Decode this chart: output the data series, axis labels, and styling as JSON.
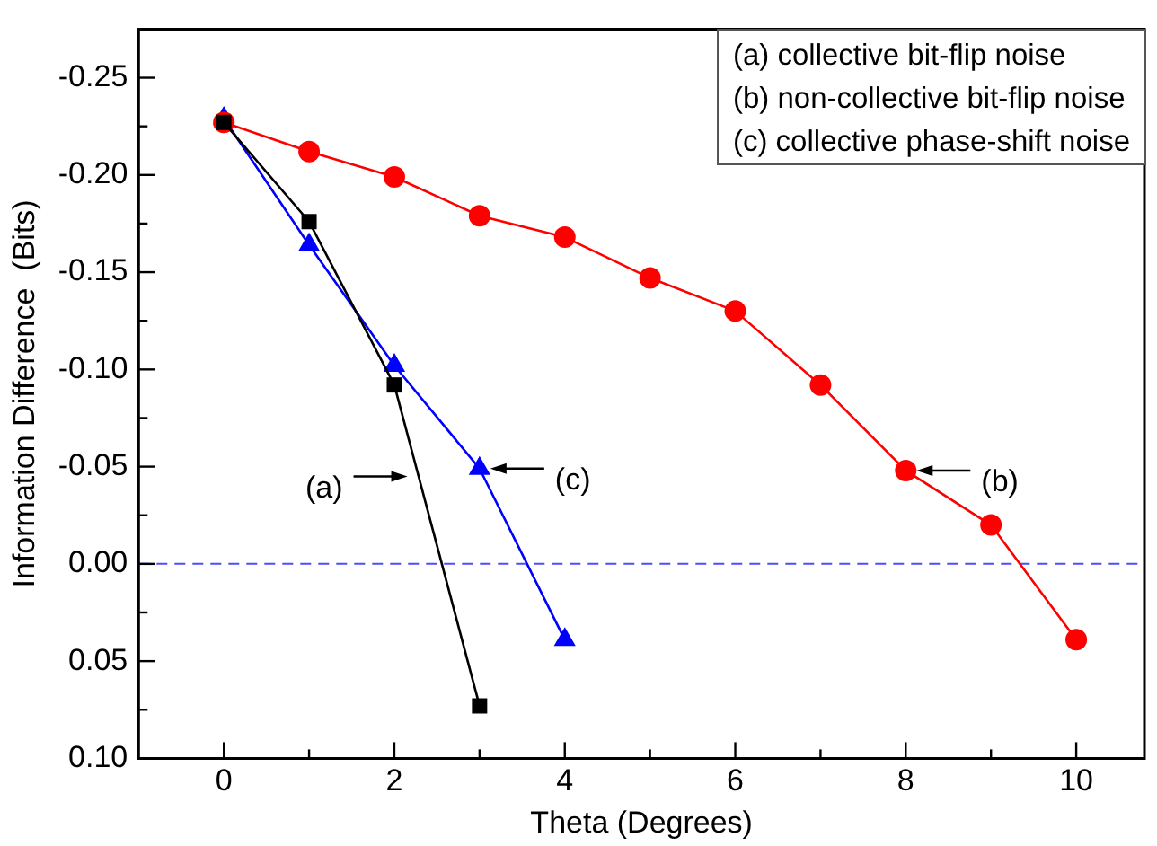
{
  "chart_data": {
    "type": "line",
    "xlabel": "Theta (Degrees)",
    "ylabel": "Information Difference  (Bits)",
    "xlim": [
      -1,
      10.8
    ],
    "xticks": [
      0,
      {
        "value": 1,
        "label": null
      },
      2,
      {
        "value": 3,
        "label": null
      },
      4,
      {
        "value": 5,
        "label": null
      },
      6,
      {
        "value": 7,
        "label": null
      },
      8,
      {
        "value": 9,
        "label": null
      },
      10
    ],
    "ylim": [
      0.1,
      -0.275
    ],
    "yticks": [
      {
        "value": -0.25,
        "label": "-0.25"
      },
      {
        "value": -0.225,
        "label": null
      },
      {
        "value": -0.2,
        "label": "-0.20"
      },
      {
        "value": -0.175,
        "label": null
      },
      {
        "value": -0.15,
        "label": "-0.15"
      },
      {
        "value": -0.125,
        "label": null
      },
      {
        "value": -0.1,
        "label": "-0.10"
      },
      {
        "value": -0.075,
        "label": null
      },
      {
        "value": -0.05,
        "label": "-0.05"
      },
      {
        "value": -0.025,
        "label": null
      },
      {
        "value": 0,
        "label": "0.00"
      },
      {
        "value": 0.025,
        "label": null
      },
      {
        "value": 0.05,
        "label": "0.05"
      },
      {
        "value": 0.075,
        "label": null
      },
      {
        "value": 0.1,
        "label": "0.10"
      }
    ],
    "x": [
      0,
      1,
      2,
      3,
      4,
      5,
      6,
      7,
      8,
      9,
      10
    ],
    "series": [
      {
        "color": "#000000",
        "marker": "square",
        "x": [
          0,
          1,
          2,
          3
        ],
        "values": [
          -0.227,
          -0.176,
          -0.092,
          0.073
        ]
      },
      {
        "color": "#ff0000",
        "marker": "circle",
        "values": [
          -0.227,
          -0.212,
          -0.199,
          -0.179,
          -0.168,
          -0.147,
          -0.13,
          -0.092,
          -0.048,
          -0.02,
          0.039
        ]
      },
      {
        "color": "#0000ff",
        "marker": "triangle",
        "x": [
          0,
          1,
          2,
          3,
          4
        ],
        "values": [
          -0.229,
          -0.164,
          -0.102,
          -0.049,
          0.039
        ]
      }
    ],
    "ref_lines": [
      {
        "axis": "y",
        "value": 0,
        "color": "#4d4dff",
        "line_style": "dashed"
      }
    ],
    "annotations": [
      "(a) collective bit-flip noise",
      "(b) non-collective bit-flip noise",
      "(c) collective phase-shift noise",
      {
        "text": "(a)",
        "x": 2.28,
        "y": -0.045
      },
      {
        "text": "(c)",
        "x": 3,
        "y": -0.049
      },
      {
        "text": "(b)",
        "x": 8,
        "y": -0.048
      }
    ]
  }
}
